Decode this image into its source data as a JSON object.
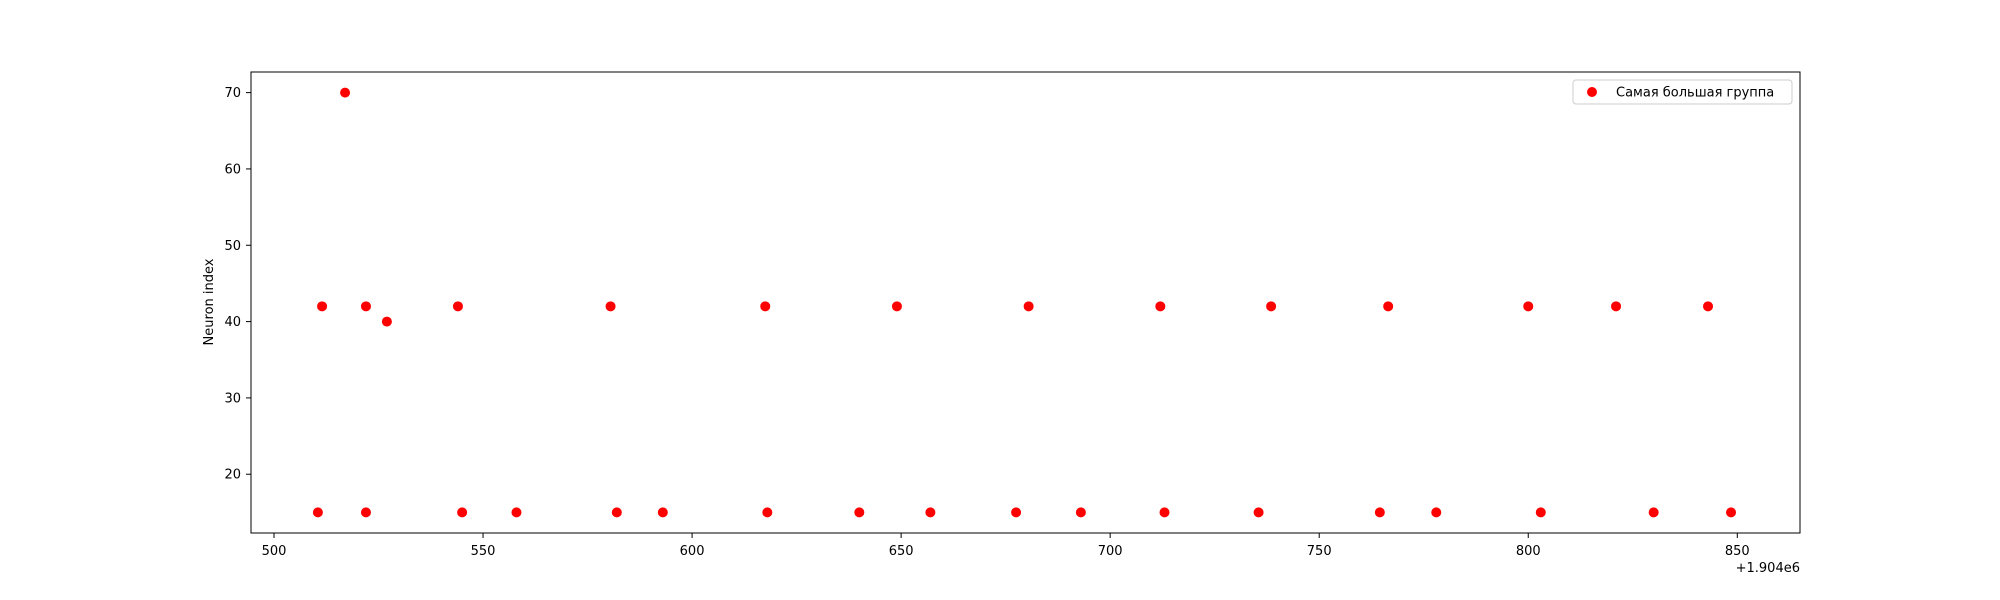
{
  "chart_data": {
    "type": "scatter",
    "title": "",
    "xlabel": "",
    "ylabel": "Neuron index",
    "x_offset_label": "+1.904e6",
    "xlim": [
      1904494.5,
      1904865
    ],
    "ylim": [
      12.3,
      72.7
    ],
    "x_ticks": [
      1904500,
      1904550,
      1904600,
      1904650,
      1904700,
      1904750,
      1904800,
      1904850
    ],
    "x_tick_labels": [
      "500",
      "550",
      "600",
      "650",
      "700",
      "750",
      "800",
      "850"
    ],
    "y_ticks": [
      20,
      30,
      40,
      50,
      60,
      70
    ],
    "y_tick_labels": [
      "20",
      "30",
      "40",
      "50",
      "60",
      "70"
    ],
    "grid": false,
    "legend_position": "upper right",
    "series": [
      {
        "name": "Самая большая группа",
        "color": "#ff0000",
        "marker": "circle",
        "points": [
          [
            1904510.5,
            15
          ],
          [
            1904511.5,
            42
          ],
          [
            1904517.0,
            70
          ],
          [
            1904522.0,
            42
          ],
          [
            1904522.0,
            15
          ],
          [
            1904527.0,
            40
          ],
          [
            1904544.0,
            42
          ],
          [
            1904545.0,
            15
          ],
          [
            1904558.0,
            15
          ],
          [
            1904580.5,
            42
          ],
          [
            1904582.0,
            15
          ],
          [
            1904593.0,
            15
          ],
          [
            1904617.5,
            42
          ],
          [
            1904618.0,
            15
          ],
          [
            1904640.0,
            15
          ],
          [
            1904649.0,
            42
          ],
          [
            1904657.0,
            15
          ],
          [
            1904677.5,
            15
          ],
          [
            1904680.5,
            42
          ],
          [
            1904693.0,
            15
          ],
          [
            1904712.0,
            42
          ],
          [
            1904713.0,
            15
          ],
          [
            1904735.5,
            15
          ],
          [
            1904738.5,
            42
          ],
          [
            1904764.5,
            15
          ],
          [
            1904766.5,
            42
          ],
          [
            1904778.0,
            15
          ],
          [
            1904800.0,
            42
          ],
          [
            1904803.0,
            15
          ],
          [
            1904821.0,
            42
          ],
          [
            1904830.0,
            15
          ],
          [
            1904843.0,
            42
          ],
          [
            1904848.5,
            15
          ]
        ]
      }
    ]
  }
}
